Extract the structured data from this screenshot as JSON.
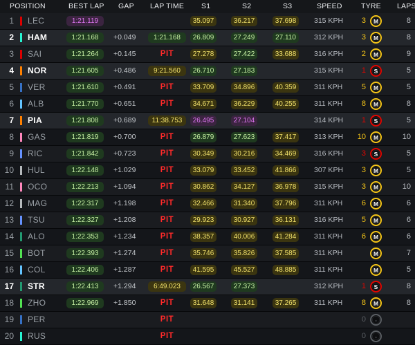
{
  "header": {
    "position": "POSITION",
    "best_lap": "BEST LAP",
    "gap": "GAP",
    "lap_time": "LAP TIME",
    "s1": "S1",
    "s2": "S2",
    "s3": "S3",
    "speed": "SPEED",
    "tyre": "TYRE",
    "laps": "LAPS"
  },
  "colors": {
    "pit": "#ff2a2a",
    "green_time": "#c6f0a4",
    "yellow_time": "#f2e26b",
    "purple_time": "#e277f5",
    "tyre_soft": "#e10600",
    "tyre_medium": "#f5c518",
    "tyre_unknown": "#5a5e63"
  },
  "rows": [
    {
      "pos": "1",
      "driver": "LEC",
      "team_color": "#dc0000",
      "best": "1:21.119",
      "best_purple": true,
      "gap": "",
      "lap": "",
      "lap_kind": "",
      "s1": "35.097",
      "s1c": "yellow",
      "s2": "36.217",
      "s2c": "yellow",
      "s3": "37.698",
      "s3c": "yellow",
      "speed": "315 KPH",
      "tyre_age": "3",
      "tyre_age_color": "#f5c518",
      "tyre": "M",
      "tyre_color": "#f5c518",
      "tyre_icon": "medium-tyre-icon",
      "laps": "8",
      "hl": false
    },
    {
      "pos": "2",
      "driver": "HAM",
      "team_color": "#27f4d2",
      "best": "1:21.168",
      "best_purple": false,
      "gap": "+0.049",
      "lap": "1:21.168",
      "lap_kind": "green",
      "s1": "26.809",
      "s1c": "green",
      "s2": "27.249",
      "s2c": "green",
      "s3": "27.110",
      "s3c": "green",
      "speed": "312 KPH",
      "tyre_age": "3",
      "tyre_age_color": "#f5c518",
      "tyre": "M",
      "tyre_color": "#f5c518",
      "tyre_icon": "medium-tyre-icon",
      "laps": "8",
      "hl": true
    },
    {
      "pos": "3",
      "driver": "SAI",
      "team_color": "#dc0000",
      "best": "1:21.264",
      "best_purple": false,
      "gap": "+0.145",
      "lap": "PIT",
      "lap_kind": "pit",
      "s1": "27.278",
      "s1c": "yellow",
      "s2": "27.422",
      "s2c": "green",
      "s3": "33.688",
      "s3c": "yellow",
      "speed": "316 KPH",
      "tyre_age": "2",
      "tyre_age_color": "#f5c518",
      "tyre": "M",
      "tyre_color": "#f5c518",
      "tyre_icon": "medium-tyre-icon",
      "laps": "9",
      "hl": false
    },
    {
      "pos": "4",
      "driver": "NOR",
      "team_color": "#ff8000",
      "best": "1:21.605",
      "best_purple": false,
      "gap": "+0.486",
      "lap": "9:21.560",
      "lap_kind": "yellow",
      "s1": "26.710",
      "s1c": "green",
      "s2": "27.183",
      "s2c": "green",
      "s3": "",
      "s3c": "",
      "speed": "315 KPH",
      "tyre_age": "1",
      "tyre_age_color": "#e10600",
      "tyre": "S",
      "tyre_color": "#e10600",
      "tyre_icon": "soft-tyre-icon",
      "laps": "5",
      "hl": true
    },
    {
      "pos": "5",
      "driver": "VER",
      "team_color": "#3671c6",
      "best": "1:21.610",
      "best_purple": false,
      "gap": "+0.491",
      "lap": "PIT",
      "lap_kind": "pit",
      "s1": "33.709",
      "s1c": "yellow",
      "s2": "34.896",
      "s2c": "yellow",
      "s3": "40.359",
      "s3c": "yellow",
      "speed": "311 KPH",
      "tyre_age": "5",
      "tyre_age_color": "#f5c518",
      "tyre": "M",
      "tyre_color": "#f5c518",
      "tyre_icon": "medium-tyre-icon",
      "laps": "5",
      "hl": false
    },
    {
      "pos": "6",
      "driver": "ALB",
      "team_color": "#64c4ff",
      "best": "1:21.770",
      "best_purple": false,
      "gap": "+0.651",
      "lap": "PIT",
      "lap_kind": "pit",
      "s1": "34.671",
      "s1c": "yellow",
      "s2": "36.229",
      "s2c": "yellow",
      "s3": "40.255",
      "s3c": "yellow",
      "speed": "311 KPH",
      "tyre_age": "8",
      "tyre_age_color": "#f5c518",
      "tyre": "M",
      "tyre_color": "#f5c518",
      "tyre_icon": "medium-tyre-icon",
      "laps": "8",
      "hl": false
    },
    {
      "pos": "7",
      "driver": "PIA",
      "team_color": "#ff8000",
      "best": "1:21.808",
      "best_purple": false,
      "gap": "+0.689",
      "lap": "11:38.753",
      "lap_kind": "yellow",
      "s1": "26.495",
      "s1c": "purple",
      "s2": "27.104",
      "s2c": "purple",
      "s3": "",
      "s3c": "",
      "speed": "314 KPH",
      "tyre_age": "1",
      "tyre_age_color": "#e10600",
      "tyre": "S",
      "tyre_color": "#e10600",
      "tyre_icon": "soft-tyre-icon",
      "laps": "5",
      "hl": true
    },
    {
      "pos": "8",
      "driver": "GAS",
      "team_color": "#ff87bc",
      "best": "1:21.819",
      "best_purple": false,
      "gap": "+0.700",
      "lap": "PIT",
      "lap_kind": "pit",
      "s1": "26.879",
      "s1c": "green",
      "s2": "27.623",
      "s2c": "green",
      "s3": "37.417",
      "s3c": "yellow",
      "speed": "313 KPH",
      "tyre_age": "10",
      "tyre_age_color": "#f5c518",
      "tyre": "M",
      "tyre_color": "#f5c518",
      "tyre_icon": "medium-tyre-icon",
      "laps": "10",
      "hl": false
    },
    {
      "pos": "9",
      "driver": "RIC",
      "team_color": "#6692ff",
      "best": "1:21.842",
      "best_purple": false,
      "gap": "+0.723",
      "lap": "PIT",
      "lap_kind": "pit",
      "s1": "30.349",
      "s1c": "yellow",
      "s2": "30.216",
      "s2c": "yellow",
      "s3": "34.469",
      "s3c": "yellow",
      "speed": "316 KPH",
      "tyre_age": "3",
      "tyre_age_color": "#e10600",
      "tyre": "S",
      "tyre_color": "#e10600",
      "tyre_icon": "soft-tyre-icon",
      "laps": "5",
      "hl": false
    },
    {
      "pos": "10",
      "driver": "HUL",
      "team_color": "#b6babd",
      "best": "1:22.148",
      "best_purple": false,
      "gap": "+1.029",
      "lap": "PIT",
      "lap_kind": "pit",
      "s1": "33.079",
      "s1c": "yellow",
      "s2": "33.452",
      "s2c": "yellow",
      "s3": "41.866",
      "s3c": "yellow",
      "speed": "307 KPH",
      "tyre_age": "3",
      "tyre_age_color": "#f5c518",
      "tyre": "M",
      "tyre_color": "#f5c518",
      "tyre_icon": "medium-tyre-icon",
      "laps": "5",
      "hl": false
    },
    {
      "pos": "11",
      "driver": "OCO",
      "team_color": "#ff87bc",
      "best": "1:22.213",
      "best_purple": false,
      "gap": "+1.094",
      "lap": "PIT",
      "lap_kind": "pit",
      "s1": "30.862",
      "s1c": "yellow",
      "s2": "34.127",
      "s2c": "yellow",
      "s3": "36.978",
      "s3c": "yellow",
      "speed": "315 KPH",
      "tyre_age": "3",
      "tyre_age_color": "#f5c518",
      "tyre": "M",
      "tyre_color": "#f5c518",
      "tyre_icon": "medium-tyre-icon",
      "laps": "10",
      "hl": false
    },
    {
      "pos": "12",
      "driver": "MAG",
      "team_color": "#b6babd",
      "best": "1:22.317",
      "best_purple": false,
      "gap": "+1.198",
      "lap": "PIT",
      "lap_kind": "pit",
      "s1": "32.466",
      "s1c": "yellow",
      "s2": "31.340",
      "s2c": "yellow",
      "s3": "37.796",
      "s3c": "yellow",
      "speed": "311 KPH",
      "tyre_age": "6",
      "tyre_age_color": "#f5c518",
      "tyre": "M",
      "tyre_color": "#f5c518",
      "tyre_icon": "medium-tyre-icon",
      "laps": "6",
      "hl": false
    },
    {
      "pos": "13",
      "driver": "TSU",
      "team_color": "#6692ff",
      "best": "1:22.327",
      "best_purple": false,
      "gap": "+1.208",
      "lap": "PIT",
      "lap_kind": "pit",
      "s1": "29.923",
      "s1c": "yellow",
      "s2": "30.927",
      "s2c": "yellow",
      "s3": "36.131",
      "s3c": "yellow",
      "speed": "316 KPH",
      "tyre_age": "5",
      "tyre_age_color": "#f5c518",
      "tyre": "M",
      "tyre_color": "#f5c518",
      "tyre_icon": "medium-tyre-icon",
      "laps": "6",
      "hl": false
    },
    {
      "pos": "14",
      "driver": "ALO",
      "team_color": "#229971",
      "best": "1:22.353",
      "best_purple": false,
      "gap": "+1.234",
      "lap": "PIT",
      "lap_kind": "pit",
      "s1": "38.357",
      "s1c": "yellow",
      "s2": "40.006",
      "s2c": "yellow",
      "s3": "41.284",
      "s3c": "yellow",
      "speed": "311 KPH",
      "tyre_age": "6",
      "tyre_age_color": "#f5c518",
      "tyre": "M",
      "tyre_color": "#f5c518",
      "tyre_icon": "medium-tyre-icon",
      "laps": "6",
      "hl": false
    },
    {
      "pos": "15",
      "driver": "BOT",
      "team_color": "#52e252",
      "best": "1:22.393",
      "best_purple": false,
      "gap": "+1.274",
      "lap": "PIT",
      "lap_kind": "pit",
      "s1": "35.746",
      "s1c": "yellow",
      "s2": "35.826",
      "s2c": "yellow",
      "s3": "37.585",
      "s3c": "yellow",
      "speed": "311 KPH",
      "tyre_age": "",
      "tyre_age_color": "#f5c518",
      "tyre": "M",
      "tyre_color": "#f5c518",
      "tyre_icon": "medium-tyre-icon",
      "laps": "7",
      "hl": false
    },
    {
      "pos": "16",
      "driver": "COL",
      "team_color": "#64c4ff",
      "best": "1:22.406",
      "best_purple": false,
      "gap": "+1.287",
      "lap": "PIT",
      "lap_kind": "pit",
      "s1": "41.595",
      "s1c": "yellow",
      "s2": "45.527",
      "s2c": "yellow",
      "s3": "48.885",
      "s3c": "yellow",
      "speed": "311 KPH",
      "tyre_age": "",
      "tyre_age_color": "#f5c518",
      "tyre": "M",
      "tyre_color": "#f5c518",
      "tyre_icon": "medium-tyre-icon",
      "laps": "5",
      "hl": false
    },
    {
      "pos": "17",
      "driver": "STR",
      "team_color": "#229971",
      "best": "1:22.413",
      "best_purple": false,
      "gap": "+1.294",
      "lap": "6:49.023",
      "lap_kind": "yellow",
      "s1": "26.567",
      "s1c": "green",
      "s2": "27.373",
      "s2c": "green",
      "s3": "",
      "s3c": "",
      "speed": "312 KPH",
      "tyre_age": "1",
      "tyre_age_color": "#e10600",
      "tyre": "S",
      "tyre_color": "#e10600",
      "tyre_icon": "soft-tyre-icon",
      "laps": "8",
      "hl": true
    },
    {
      "pos": "18",
      "driver": "ZHO",
      "team_color": "#52e252",
      "best": "1:22.969",
      "best_purple": false,
      "gap": "+1.850",
      "lap": "PIT",
      "lap_kind": "pit",
      "s1": "31.648",
      "s1c": "yellow",
      "s2": "31.141",
      "s2c": "yellow",
      "s3": "37.265",
      "s3c": "yellow",
      "speed": "311 KPH",
      "tyre_age": "8",
      "tyre_age_color": "#f5c518",
      "tyre": "M",
      "tyre_color": "#f5c518",
      "tyre_icon": "medium-tyre-icon",
      "laps": "8",
      "hl": false
    },
    {
      "pos": "19",
      "driver": "PER",
      "team_color": "#3671c6",
      "best": "",
      "best_purple": false,
      "gap": "",
      "lap": "PIT",
      "lap_kind": "pit",
      "s1": "",
      "s1c": "",
      "s2": "",
      "s2c": "",
      "s3": "",
      "s3c": "",
      "speed": "",
      "tyre_age": "0",
      "tyre_age_color": "#5a5e63",
      "tyre": "-",
      "tyre_color": "#5a5e63",
      "tyre_icon": "unknown-tyre-icon",
      "laps": "",
      "hl": false
    },
    {
      "pos": "20",
      "driver": "RUS",
      "team_color": "#27f4d2",
      "best": "",
      "best_purple": false,
      "gap": "",
      "lap": "PIT",
      "lap_kind": "pit",
      "s1": "",
      "s1c": "",
      "s2": "",
      "s2c": "",
      "s3": "",
      "s3c": "",
      "speed": "",
      "tyre_age": "0",
      "tyre_age_color": "#5a5e63",
      "tyre": "-",
      "tyre_color": "#5a5e63",
      "tyre_icon": "unknown-tyre-icon",
      "laps": "",
      "hl": false
    }
  ]
}
